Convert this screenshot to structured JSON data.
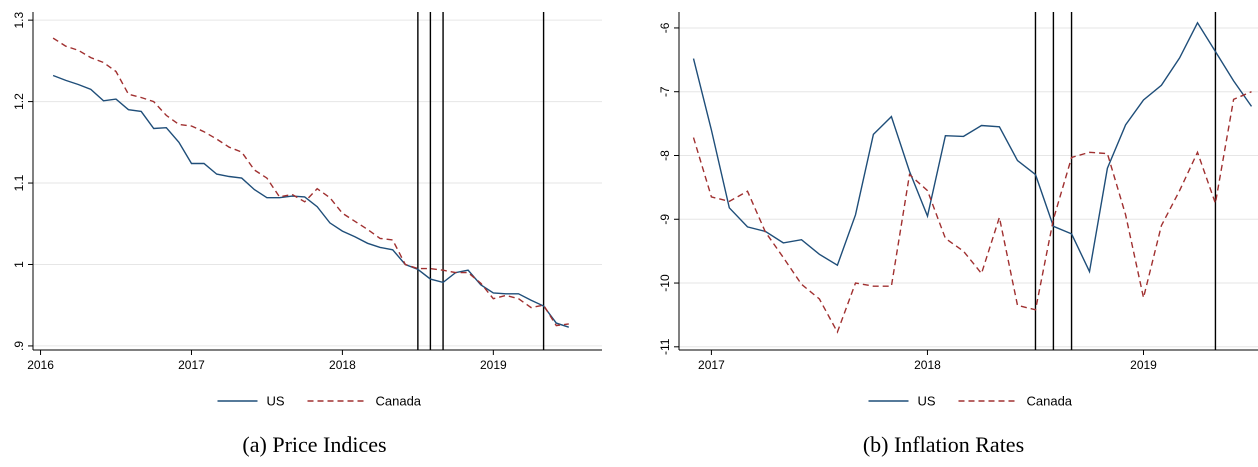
{
  "colors": {
    "us": "#1f4e79",
    "canada": "#a03030",
    "grid": "#e6e6e6",
    "vline": "#000000"
  },
  "chart_data": [
    {
      "type": "line",
      "caption": "(a)  Price Indices",
      "legend": [
        "US",
        "Canada"
      ],
      "legend_position": "bottom",
      "grid": true,
      "xlim": [
        2015.95,
        2019.72
      ],
      "ylim": [
        0.895,
        1.31
      ],
      "xticks": [
        2016,
        2017,
        2018,
        2019
      ],
      "xtick_labels": [
        "2016",
        "2017",
        "2018",
        "2019"
      ],
      "yticks": [
        0.9,
        1.0,
        1.1,
        1.2,
        1.3
      ],
      "ytick_labels": [
        ".9",
        "1",
        "1.1",
        "1.2",
        "1.3"
      ],
      "vlines": [
        2018.5,
        2018.583,
        2018.667,
        2019.333
      ],
      "series": [
        {
          "name": "US",
          "style": "solid",
          "x": [
            2016.083,
            2016.167,
            2016.25,
            2016.333,
            2016.417,
            2016.5,
            2016.583,
            2016.667,
            2016.75,
            2016.833,
            2016.917,
            2017.0,
            2017.083,
            2017.167,
            2017.25,
            2017.333,
            2017.417,
            2017.5,
            2017.583,
            2017.667,
            2017.75,
            2017.833,
            2017.917,
            2018.0,
            2018.083,
            2018.167,
            2018.25,
            2018.333,
            2018.417,
            2018.5,
            2018.583,
            2018.667,
            2018.75,
            2018.833,
            2018.917,
            2019.0,
            2019.083,
            2019.167,
            2019.25,
            2019.333,
            2019.417,
            2019.5
          ],
          "values": [
            1.232,
            1.226,
            1.221,
            1.215,
            1.201,
            1.203,
            1.19,
            1.188,
            1.167,
            1.168,
            1.15,
            1.124,
            1.124,
            1.111,
            1.108,
            1.106,
            1.092,
            1.082,
            1.082,
            1.084,
            1.083,
            1.071,
            1.051,
            1.041,
            1.034,
            1.026,
            1.021,
            1.018,
            1.0,
            0.994,
            0.982,
            0.978,
            0.99,
            0.993,
            0.975,
            0.965,
            0.964,
            0.964,
            0.956,
            0.949,
            0.928,
            0.923
          ]
        },
        {
          "name": "Canada",
          "style": "dashed",
          "x": [
            2016.083,
            2016.167,
            2016.25,
            2016.333,
            2016.417,
            2016.5,
            2016.583,
            2016.667,
            2016.75,
            2016.833,
            2016.917,
            2017.0,
            2017.083,
            2017.167,
            2017.25,
            2017.333,
            2017.417,
            2017.5,
            2017.583,
            2017.667,
            2017.75,
            2017.833,
            2017.917,
            2018.0,
            2018.083,
            2018.167,
            2018.25,
            2018.333,
            2018.417,
            2018.5,
            2018.583,
            2018.667,
            2018.75,
            2018.833,
            2018.917,
            2019.0,
            2019.083,
            2019.167,
            2019.25,
            2019.333,
            2019.417,
            2019.5
          ],
          "values": [
            1.278,
            1.268,
            1.263,
            1.254,
            1.248,
            1.237,
            1.209,
            1.205,
            1.2,
            1.183,
            1.172,
            1.17,
            1.163,
            1.154,
            1.144,
            1.138,
            1.116,
            1.106,
            1.083,
            1.086,
            1.077,
            1.093,
            1.082,
            1.063,
            1.053,
            1.043,
            1.032,
            1.03,
            1.0,
            0.995,
            0.995,
            0.993,
            0.99,
            0.99,
            0.977,
            0.958,
            0.962,
            0.958,
            0.947,
            0.95,
            0.925,
            0.927
          ]
        }
      ]
    },
    {
      "type": "line",
      "caption": "(b)  Inflation Rates",
      "legend": [
        "US",
        "Canada"
      ],
      "legend_position": "bottom",
      "grid": true,
      "xlim": [
        2016.85,
        2019.53
      ],
      "ylim": [
        -11.05,
        -5.75
      ],
      "xticks": [
        2017,
        2018,
        2019
      ],
      "xtick_labels": [
        "2017",
        "2018",
        "2019"
      ],
      "yticks": [
        -11,
        -10,
        -9,
        -8,
        -7,
        -6
      ],
      "ytick_labels": [
        "-11",
        "-10",
        "-9",
        "-8",
        "-7",
        "-6"
      ],
      "vlines": [
        2018.5,
        2018.583,
        2018.667,
        2019.333
      ],
      "series": [
        {
          "name": "US",
          "style": "solid",
          "x": [
            2016.917,
            2017.0,
            2017.083,
            2017.167,
            2017.25,
            2017.333,
            2017.417,
            2017.5,
            2017.583,
            2017.667,
            2017.75,
            2017.833,
            2017.917,
            2018.0,
            2018.083,
            2018.167,
            2018.25,
            2018.333,
            2018.417,
            2018.5,
            2018.583,
            2018.667,
            2018.75,
            2018.833,
            2018.917,
            2019.0,
            2019.083,
            2019.167,
            2019.25,
            2019.333,
            2019.417,
            2019.5
          ],
          "values": [
            -6.48,
            -7.6,
            -8.82,
            -9.12,
            -9.19,
            -9.37,
            -9.32,
            -9.55,
            -9.72,
            -8.93,
            -7.67,
            -7.39,
            -8.25,
            -8.95,
            -7.69,
            -7.7,
            -7.53,
            -7.55,
            -8.08,
            -8.3,
            -9.11,
            -9.23,
            -9.82,
            -8.2,
            -7.52,
            -7.13,
            -6.9,
            -6.47,
            -5.92,
            -6.37,
            -6.83,
            -7.23
          ]
        },
        {
          "name": "Canada",
          "style": "dashed",
          "x": [
            2016.917,
            2017.0,
            2017.083,
            2017.167,
            2017.25,
            2017.333,
            2017.417,
            2017.5,
            2017.583,
            2017.667,
            2017.75,
            2017.833,
            2017.917,
            2018.0,
            2018.083,
            2018.167,
            2018.25,
            2018.333,
            2018.417,
            2018.5,
            2018.583,
            2018.667,
            2018.75,
            2018.833,
            2018.917,
            2019.0,
            2019.083,
            2019.167,
            2019.25,
            2019.333,
            2019.417,
            2019.5
          ],
          "values": [
            -7.72,
            -8.65,
            -8.72,
            -8.56,
            -9.2,
            -9.6,
            -10.02,
            -10.25,
            -10.77,
            -10.0,
            -10.05,
            -10.05,
            -8.3,
            -8.55,
            -9.3,
            -9.5,
            -9.85,
            -8.97,
            -10.35,
            -10.42,
            -9.0,
            -8.03,
            -7.95,
            -7.97,
            -8.93,
            -10.23,
            -9.1,
            -8.55,
            -7.95,
            -8.75,
            -7.12,
            -7.0
          ]
        }
      ]
    }
  ]
}
